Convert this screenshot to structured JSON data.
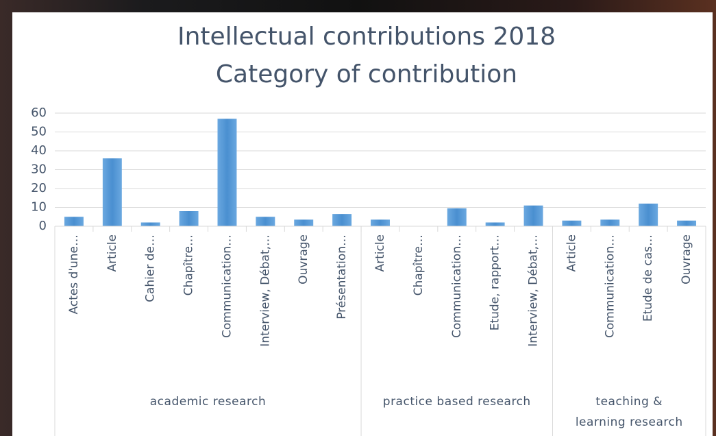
{
  "chart_data": {
    "type": "bar",
    "title": "Intellectual contributions 2018",
    "subtitle": "Category of contribution",
    "color": "#5b9bd5",
    "ylim": [
      0,
      60
    ],
    "yticks": [
      0,
      10,
      20,
      30,
      40,
      50,
      60
    ],
    "grid": true,
    "groups": [
      {
        "name": "academic research",
        "categories": [
          "Actes d'une…",
          "Article",
          "Cahier de…",
          "Chapître…",
          "Communication…",
          "Interview, Débat,…",
          "Ouvrage",
          "Présentation…"
        ],
        "values": [
          5,
          36,
          2,
          8,
          57,
          5,
          3.5,
          6.5
        ]
      },
      {
        "name": "practice based research",
        "categories": [
          "Article",
          "Chapître…",
          "Communication…",
          "Etude, rapport…",
          "Interview, Débat,…"
        ],
        "values": [
          3.5,
          0,
          9.5,
          2,
          11
        ]
      },
      {
        "name": "teaching & learning research",
        "categories": [
          "Article",
          "Communication…",
          "Etude de cas…",
          "Ouvrage"
        ],
        "values": [
          3,
          3.5,
          12,
          3
        ]
      }
    ]
  }
}
